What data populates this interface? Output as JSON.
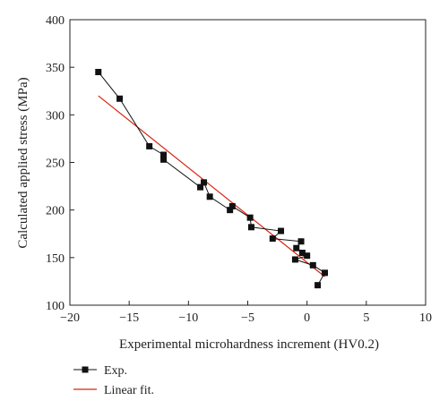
{
  "chart_data": {
    "type": "line",
    "title": "",
    "xlabel": "Experimental microhardness increment (HV0.2)",
    "ylabel": "Calculated applied stress (MPa)",
    "xlim": [
      -20,
      10
    ],
    "ylim": [
      100,
      400
    ],
    "xticks": [
      -20,
      -15,
      -10,
      -5,
      0,
      5,
      10
    ],
    "yticks": [
      100,
      150,
      200,
      250,
      300,
      350,
      400
    ],
    "xtick_labels": [
      "−20",
      "−15",
      "−10",
      "−5",
      "0",
      "5",
      "10"
    ],
    "ytick_labels": [
      "100",
      "150",
      "200",
      "250",
      "300",
      "350",
      "400"
    ],
    "grid": false,
    "legend_position": "bottom-left, below the plot",
    "series": [
      {
        "name": "Exp.",
        "style": "line-with-square-markers",
        "color": "#111111",
        "x": [
          -17.6,
          -15.8,
          -13.3,
          -12.1,
          -12.1,
          -9.0,
          -8.7,
          -8.2,
          -6.5,
          -6.3,
          -4.8,
          -4.7,
          -2.2,
          -2.9,
          -0.5,
          -0.9,
          -0.4,
          0.0,
          -1.0,
          0.5,
          1.5,
          0.9
        ],
        "y": [
          345,
          317,
          267,
          258,
          253,
          224,
          229,
          214,
          200,
          204,
          192,
          182,
          178,
          170,
          167,
          160,
          155,
          152,
          148,
          142,
          134,
          121
        ]
      },
      {
        "name": "Linear fit.",
        "style": "line",
        "color": "#d9230f",
        "x": [
          -17.6,
          1.5
        ],
        "y": [
          320,
          130
        ]
      }
    ]
  }
}
